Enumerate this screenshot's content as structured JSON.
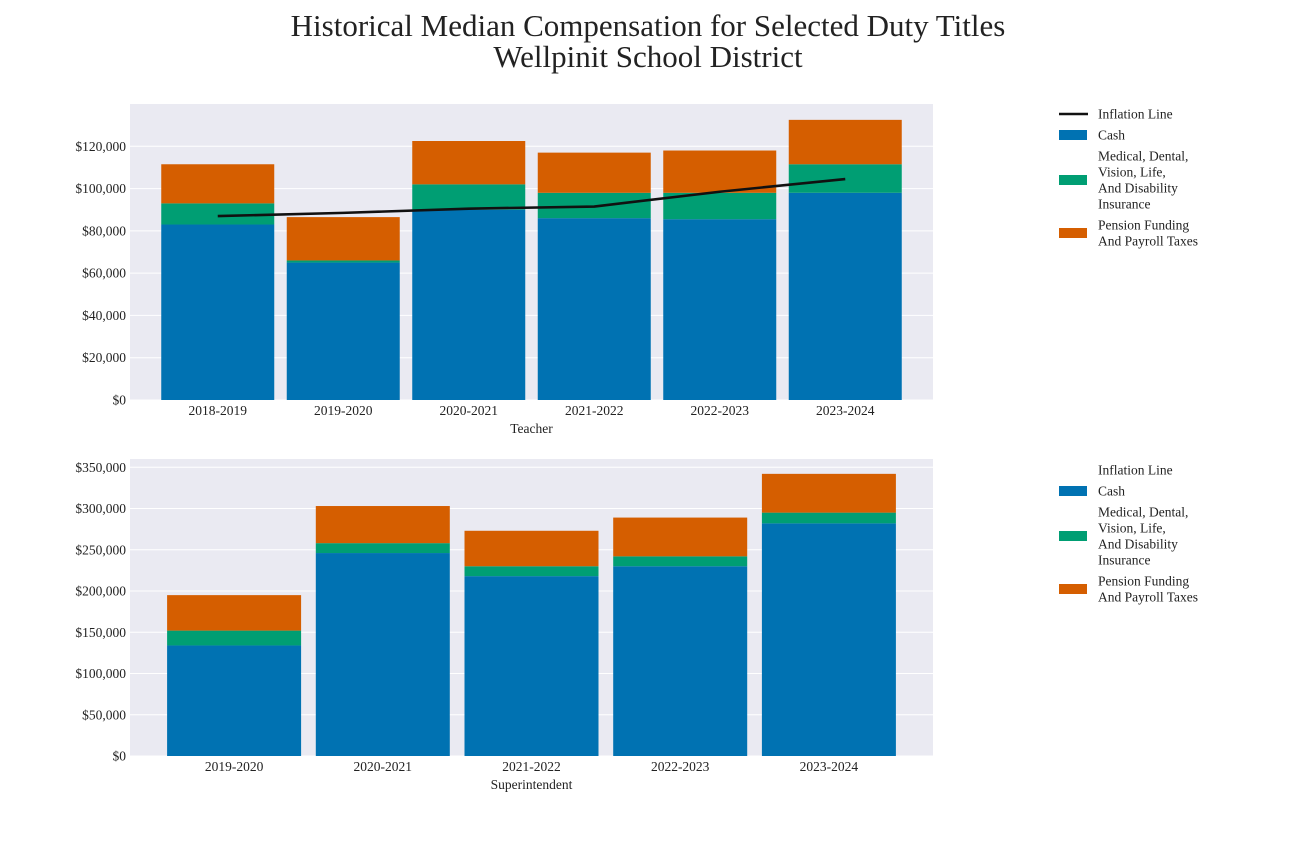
{
  "title_line1": "Historical Median Compensation for Selected Duty Titles",
  "title_line2": "Wellpinit School District",
  "colors": {
    "cash": "#0072b2",
    "medical": "#009e73",
    "pension": "#d55e00",
    "inflation": "#111111",
    "plot_bg": "#eaeaf2",
    "grid": "#ffffff"
  },
  "chart_data": [
    {
      "type": "bar",
      "stacked": true,
      "xlabel": "Teacher",
      "categories": [
        "2018-2019",
        "2019-2020",
        "2020-2021",
        "2021-2022",
        "2022-2023",
        "2023-2024"
      ],
      "ylim": [
        0,
        140000
      ],
      "yticks": [
        0,
        20000,
        40000,
        60000,
        80000,
        100000,
        120000
      ],
      "ytick_labels": [
        "$0",
        "$20,000",
        "$40,000",
        "$60,000",
        "$80,000",
        "$100,000",
        "$120,000"
      ],
      "grid": true,
      "legend_position": "right",
      "legend": [
        {
          "key": "inflation",
          "label": "Inflation Line",
          "kind": "line"
        },
        {
          "key": "cash",
          "label": "Cash",
          "kind": "patch"
        },
        {
          "key": "medical",
          "label": "Medical, Dental,\nVision, Life,\nAnd Disability\nInsurance",
          "kind": "patch"
        },
        {
          "key": "pension",
          "label": "Pension Funding\nAnd Payroll Taxes",
          "kind": "patch"
        }
      ],
      "series": [
        {
          "key": "cash",
          "values": [
            83000,
            65000,
            90000,
            86000,
            85500,
            98000
          ]
        },
        {
          "key": "medical",
          "values": [
            10000,
            1000,
            12000,
            12000,
            12500,
            13500
          ]
        },
        {
          "key": "pension",
          "values": [
            18500,
            20500,
            20500,
            19000,
            20000,
            21000
          ]
        }
      ],
      "inflation": [
        87000,
        88500,
        90500,
        91500,
        98500,
        104500
      ]
    },
    {
      "type": "bar",
      "stacked": true,
      "xlabel": "Superintendent",
      "categories": [
        "2019-2020",
        "2020-2021",
        "2021-2022",
        "2022-2023",
        "2023-2024"
      ],
      "ylim": [
        0,
        360000
      ],
      "yticks": [
        0,
        50000,
        100000,
        150000,
        200000,
        250000,
        300000,
        350000
      ],
      "ytick_labels": [
        "$0",
        "$50,000",
        "$100,000",
        "$150,000",
        "$200,000",
        "$250,000",
        "$300,000",
        "$350,000"
      ],
      "grid": true,
      "legend_position": "right",
      "legend": [
        {
          "key": "inflation",
          "label": "Inflation Line",
          "kind": "none"
        },
        {
          "key": "cash",
          "label": "Cash",
          "kind": "patch"
        },
        {
          "key": "medical",
          "label": "Medical, Dental,\nVision, Life,\nAnd Disability\nInsurance",
          "kind": "patch"
        },
        {
          "key": "pension",
          "label": "Pension Funding\nAnd Payroll Taxes",
          "kind": "patch"
        }
      ],
      "series": [
        {
          "key": "cash",
          "values": [
            134000,
            246000,
            218000,
            230000,
            282000
          ]
        },
        {
          "key": "medical",
          "values": [
            18000,
            12000,
            12000,
            12000,
            13000
          ]
        },
        {
          "key": "pension",
          "values": [
            43000,
            45000,
            43000,
            47000,
            47000
          ]
        }
      ]
    }
  ]
}
